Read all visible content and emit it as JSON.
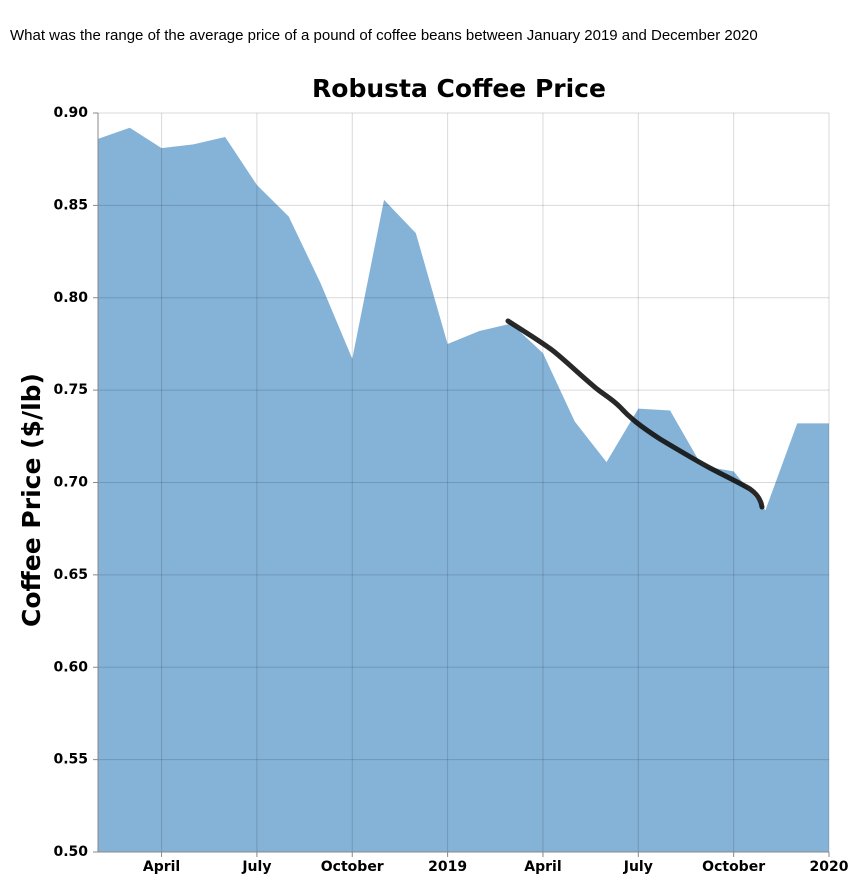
{
  "question": "What was the range of the average price of a pound of coffee beans between January 2019 and December 2020",
  "chart_data": {
    "type": "area",
    "title": "Robusta Coffee Price",
    "y_label": "Coffee Price ($/lb)",
    "color": "#85b2d7",
    "grid": true,
    "x": [
      "2018-02",
      "2018-03",
      "2018-04",
      "2018-05",
      "2018-06",
      "2018-07",
      "2018-08",
      "2018-09",
      "2018-10",
      "2018-11",
      "2018-12",
      "2019-01",
      "2019-02",
      "2019-03",
      "2019-04",
      "2019-05",
      "2019-06",
      "2019-07",
      "2019-08",
      "2019-09",
      "2019-10",
      "2019-11",
      "2019-12",
      "2020-01"
    ],
    "values": [
      0.886,
      0.892,
      0.881,
      0.883,
      0.887,
      0.861,
      0.844,
      0.808,
      0.767,
      0.853,
      0.835,
      0.775,
      0.782,
      0.786,
      0.77,
      0.733,
      0.711,
      0.74,
      0.739,
      0.709,
      0.706,
      0.685,
      0.732,
      0.732
    ],
    "xlim": [
      "2018-02",
      "2020-01"
    ],
    "xticks": [
      {
        "value": "2018-04",
        "label": "April"
      },
      {
        "value": "2018-07",
        "label": "July"
      },
      {
        "value": "2018-10",
        "label": "October"
      },
      {
        "value": "2019-01",
        "label": "2019"
      },
      {
        "value": "2019-04",
        "label": "April"
      },
      {
        "value": "2019-07",
        "label": "July"
      },
      {
        "value": "2019-10",
        "label": "October"
      },
      {
        "value": "2020-01",
        "label": "2020"
      }
    ],
    "ylim": [
      0.5,
      0.9
    ],
    "yticks": [
      {
        "value": 0.5,
        "label": "0.50"
      },
      0.55,
      {
        "value": 0.6,
        "label": "0.60"
      },
      0.65,
      {
        "value": 0.7,
        "label": "0.70"
      },
      0.75,
      {
        "value": 0.8,
        "label": "0.80"
      },
      0.85,
      {
        "value": 0.9,
        "label": "0.90"
      }
    ]
  }
}
